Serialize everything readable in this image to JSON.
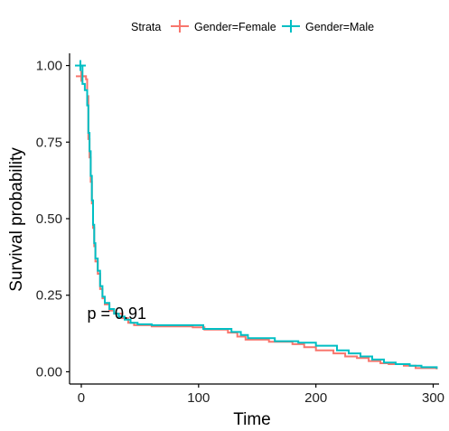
{
  "chart_data": {
    "type": "line",
    "subtype": "kaplan-meier-step",
    "title": "",
    "xlabel": "Time",
    "ylabel": "Survival probability",
    "xlim": [
      -10,
      305
    ],
    "ylim": [
      -0.04,
      1.04
    ],
    "x_ticks": [
      0,
      100,
      200,
      300
    ],
    "y_ticks": [
      0.0,
      0.25,
      0.5,
      0.75,
      1.0
    ],
    "y_tick_labels": [
      "0.00",
      "0.25",
      "0.50",
      "0.75",
      "1.00"
    ],
    "grid": false,
    "legend_position": "top",
    "legend_title": "Strata",
    "annotation": {
      "text": "p = 0.91",
      "x": 5,
      "y": 0.19
    },
    "series": [
      {
        "name": "Gender=Female",
        "color": "#F8766D",
        "points": [
          [
            0,
            0.965
          ],
          [
            4,
            0.955
          ],
          [
            5,
            0.9
          ],
          [
            6,
            0.76
          ],
          [
            7,
            0.7
          ],
          [
            8,
            0.62
          ],
          [
            9,
            0.55
          ],
          [
            10,
            0.47
          ],
          [
            11,
            0.41
          ],
          [
            12,
            0.36
          ],
          [
            14,
            0.32
          ],
          [
            16,
            0.27
          ],
          [
            18,
            0.24
          ],
          [
            20,
            0.22
          ],
          [
            24,
            0.2
          ],
          [
            28,
            0.19
          ],
          [
            35,
            0.175
          ],
          [
            40,
            0.16
          ],
          [
            45,
            0.152
          ],
          [
            60,
            0.148
          ],
          [
            95,
            0.145
          ],
          [
            105,
            0.138
          ],
          [
            125,
            0.128
          ],
          [
            133,
            0.115
          ],
          [
            140,
            0.105
          ],
          [
            160,
            0.098
          ],
          [
            180,
            0.09
          ],
          [
            190,
            0.08
          ],
          [
            200,
            0.07
          ],
          [
            215,
            0.06
          ],
          [
            225,
            0.05
          ],
          [
            235,
            0.045
          ],
          [
            245,
            0.035
          ],
          [
            255,
            0.028
          ],
          [
            262,
            0.025
          ],
          [
            275,
            0.02
          ],
          [
            285,
            0.012
          ],
          [
            303,
            0.008
          ]
        ],
        "censor_x": [
          0
        ]
      },
      {
        "name": "Gender=Male",
        "color": "#00BFC4",
        "points": [
          [
            0,
            1.0
          ],
          [
            1,
            0.94
          ],
          [
            3,
            0.92
          ],
          [
            5,
            0.87
          ],
          [
            6,
            0.78
          ],
          [
            7,
            0.72
          ],
          [
            8,
            0.64
          ],
          [
            9,
            0.56
          ],
          [
            10,
            0.48
          ],
          [
            11,
            0.42
          ],
          [
            12,
            0.37
          ],
          [
            14,
            0.33
          ],
          [
            16,
            0.28
          ],
          [
            18,
            0.245
          ],
          [
            20,
            0.225
          ],
          [
            24,
            0.205
          ],
          [
            28,
            0.19
          ],
          [
            32,
            0.18
          ],
          [
            37,
            0.17
          ],
          [
            42,
            0.16
          ],
          [
            48,
            0.155
          ],
          [
            60,
            0.152
          ],
          [
            104,
            0.14
          ],
          [
            128,
            0.13
          ],
          [
            136,
            0.12
          ],
          [
            142,
            0.11
          ],
          [
            165,
            0.1
          ],
          [
            185,
            0.095
          ],
          [
            200,
            0.085
          ],
          [
            218,
            0.07
          ],
          [
            228,
            0.06
          ],
          [
            238,
            0.05
          ],
          [
            248,
            0.04
          ],
          [
            258,
            0.03
          ],
          [
            268,
            0.025
          ],
          [
            280,
            0.02
          ],
          [
            290,
            0.015
          ],
          [
            303,
            0.01
          ]
        ],
        "censor_x": [
          0
        ]
      }
    ]
  }
}
